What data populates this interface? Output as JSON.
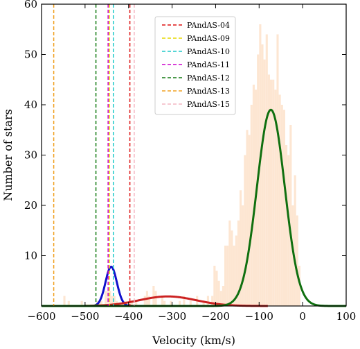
{
  "chart_data": {
    "type": "bar",
    "xlabel": "Velocity (km/s)",
    "ylabel": "Number of stars",
    "xlim": [
      -600,
      100
    ],
    "ylim": [
      0,
      60
    ],
    "xticks": [
      -600,
      -500,
      -400,
      -300,
      -200,
      -100,
      0,
      100
    ],
    "yticks": [
      10,
      20,
      30,
      40,
      50,
      60
    ],
    "xtick_labels": [
      "−600",
      "−500",
      "−400",
      "−300",
      "−200",
      "−100",
      "0",
      "100"
    ],
    "ytick_labels": [
      "10",
      "20",
      "30",
      "40",
      "50",
      "60"
    ],
    "histogram": {
      "color": "#fde6d2",
      "bin_width": 5,
      "bins": [
        [
          -545,
          2
        ],
        [
          -535,
          1
        ],
        [
          -505,
          1
        ],
        [
          -470,
          1
        ],
        [
          -465,
          1
        ],
        [
          -460,
          1
        ],
        [
          -450,
          3
        ],
        [
          -445,
          3
        ],
        [
          -440,
          3
        ],
        [
          -435,
          2
        ],
        [
          -430,
          2
        ],
        [
          -425,
          1
        ],
        [
          -410,
          1
        ],
        [
          -405,
          1
        ],
        [
          -395,
          1
        ],
        [
          -390,
          1
        ],
        [
          -380,
          1
        ],
        [
          -360,
          2
        ],
        [
          -355,
          3
        ],
        [
          -350,
          2
        ],
        [
          -340,
          4
        ],
        [
          -335,
          3
        ],
        [
          -320,
          2
        ],
        [
          -315,
          1
        ],
        [
          -300,
          1
        ],
        [
          -280,
          1
        ],
        [
          -270,
          2
        ],
        [
          -255,
          1
        ],
        [
          -240,
          2
        ],
        [
          -225,
          1
        ],
        [
          -215,
          2
        ],
        [
          -205,
          2
        ],
        [
          -200,
          8
        ],
        [
          -195,
          7
        ],
        [
          -190,
          5
        ],
        [
          -185,
          3
        ],
        [
          -180,
          4
        ],
        [
          -175,
          12
        ],
        [
          -170,
          12
        ],
        [
          -165,
          17
        ],
        [
          -160,
          15
        ],
        [
          -155,
          12
        ],
        [
          -150,
          14
        ],
        [
          -145,
          17
        ],
        [
          -140,
          23
        ],
        [
          -135,
          20
        ],
        [
          -130,
          30
        ],
        [
          -125,
          35
        ],
        [
          -120,
          34
        ],
        [
          -115,
          40
        ],
        [
          -110,
          44
        ],
        [
          -105,
          43
        ],
        [
          -100,
          50
        ],
        [
          -95,
          56
        ],
        [
          -90,
          52
        ],
        [
          -85,
          49
        ],
        [
          -80,
          54
        ],
        [
          -75,
          46
        ],
        [
          -70,
          45
        ],
        [
          -65,
          45
        ],
        [
          -60,
          43
        ],
        [
          -55,
          54
        ],
        [
          -50,
          42
        ],
        [
          -45,
          40
        ],
        [
          -40,
          39
        ],
        [
          -35,
          32
        ],
        [
          -30,
          30
        ],
        [
          -25,
          36
        ],
        [
          -20,
          20
        ],
        [
          -15,
          26
        ],
        [
          -10,
          18
        ],
        [
          -5,
          8
        ]
      ]
    },
    "gaussians": [
      {
        "color": "#1111cc",
        "amplitude": 7.8,
        "mean": -440,
        "sigma": 13,
        "x_range": [
          -490,
          -390
        ]
      },
      {
        "color": "#cc2222",
        "amplitude": 1.9,
        "mean": -310,
        "sigma": 65,
        "x_range": [
          -500,
          -80
        ]
      },
      {
        "color": "#107010",
        "amplitude": 39,
        "mean": -73,
        "sigma": 32,
        "x_range": [
          -600,
          100
        ]
      }
    ],
    "vlines": [
      {
        "name": "PAndAS-04",
        "x": -397,
        "color": "#dd1111"
      },
      {
        "name": "PAndAS-09",
        "x": -444,
        "color": "#e6d800"
      },
      {
        "name": "PAndAS-10",
        "x": -435,
        "color": "#1fc9c9"
      },
      {
        "name": "PAndAS-11",
        "x": -447,
        "color": "#cc00cc"
      },
      {
        "name": "PAndAS-12",
        "x": -475,
        "color": "#127a12"
      },
      {
        "name": "PAndAS-13",
        "x": -572,
        "color": "#f0a020"
      },
      {
        "name": "PAndAS-15",
        "x": -387,
        "color": "#f4b6c2"
      }
    ],
    "legend_position": "top-center",
    "grid": false
  }
}
